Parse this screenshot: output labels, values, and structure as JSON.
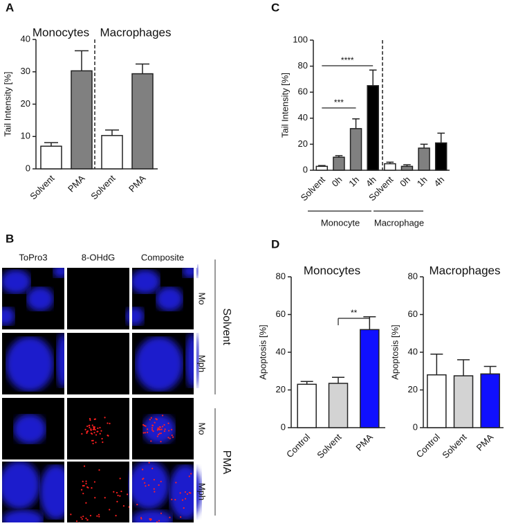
{
  "figure": {
    "panel_labels": [
      "A",
      "B",
      "C",
      "D"
    ]
  },
  "microscopy": {
    "columns": [
      "ToPro3",
      "8-OHdG",
      "Composite"
    ],
    "rows": [
      "Mo",
      "Mph",
      "Mo",
      "Mph"
    ],
    "groups": [
      "Solvent",
      "PMA"
    ]
  },
  "chart_data": [
    {
      "type": "bar",
      "y_label": "Tail Intensity [%]",
      "group_labels": [
        "Monocytes",
        "Macrophages"
      ],
      "categories": [
        "Solvent",
        "PMA",
        "Solvent",
        "PMA"
      ],
      "values": [
        7,
        30.3,
        10.3,
        29.4
      ],
      "errors": [
        1.1,
        6.2,
        1.7,
        3
      ],
      "colors": [
        "#ffffff",
        "#808080",
        "#ffffff",
        "#808080"
      ],
      "ylim": [
        0,
        40
      ],
      "yticks": [
        0,
        10,
        20,
        30,
        40
      ]
    },
    {
      "type": "bar",
      "y_label": "Tail Intensity [%]",
      "group_labels": [
        "Monocyte",
        "Macrophage"
      ],
      "categories": [
        "Solvent",
        "0h",
        "1h",
        "4h",
        "Solvent",
        "0h",
        "1h",
        "4h"
      ],
      "values": [
        3,
        10,
        32,
        65,
        5,
        3,
        17,
        21
      ],
      "errors": [
        0.6,
        1.2,
        7.5,
        12,
        1.2,
        1.2,
        3,
        7.5
      ],
      "colors": [
        "#ffffff",
        "#808080",
        "#808080",
        "#000000",
        "#ffffff",
        "#808080",
        "#808080",
        "#000000"
      ],
      "ylim": [
        0,
        100
      ],
      "yticks": [
        0,
        20,
        40,
        60,
        80,
        100
      ],
      "annotations": [
        "****",
        "***"
      ]
    },
    {
      "type": "bar",
      "title": "Monocytes",
      "y_label": "Apoptosis [%]",
      "categories": [
        "Control",
        "Solvent",
        "PMA"
      ],
      "values": [
        23,
        23.5,
        52
      ],
      "errors": [
        1.5,
        3.2,
        6.8
      ],
      "colors": [
        "#ffffff",
        "#d3d3d3",
        "#1010ff"
      ],
      "ylim": [
        0,
        80
      ],
      "yticks": [
        0,
        20,
        40,
        60,
        80
      ],
      "annotations": [
        "**"
      ]
    },
    {
      "type": "bar",
      "title": "Macrophages",
      "y_label": "Apoptosis [%]",
      "categories": [
        "Control",
        "Solvent",
        "PMA"
      ],
      "values": [
        28,
        27.5,
        28.5
      ],
      "errors": [
        11,
        8.5,
        4
      ],
      "colors": [
        "#ffffff",
        "#d3d3d3",
        "#1010ff"
      ],
      "ylim": [
        0,
        80
      ],
      "yticks": [
        0,
        20,
        40,
        60,
        80
      ]
    }
  ]
}
